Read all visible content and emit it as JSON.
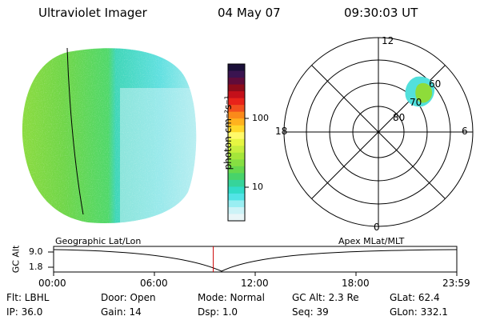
{
  "header": {
    "instrument": "Ultraviolet Imager",
    "date": "04 May 07",
    "time": "09:30:03 UT"
  },
  "colorbar": {
    "unit_label": "photon cm⁻²s⁻¹",
    "tick_labels": [
      "100",
      "10"
    ],
    "colors": [
      "#1a0f38",
      "#3a1450",
      "#600c3a",
      "#8e0c1a",
      "#c4101a",
      "#e8231a",
      "#f2501e",
      "#fa8a1a",
      "#ffb21e",
      "#ffd82a",
      "#fffa6a",
      "#e6f542",
      "#c7ee3e",
      "#a5e63a",
      "#86df42",
      "#66d84e",
      "#48d36a",
      "#36d49a",
      "#32dcc8",
      "#52e4e6",
      "#9aeef2",
      "#cdf3f7",
      "#e9f6f8"
    ]
  },
  "polar": {
    "mlt_labels": {
      "top": "12",
      "left": "18",
      "right": "6",
      "bottom": "0"
    },
    "lat_labels": [
      "60",
      "70",
      "80"
    ]
  },
  "timeline": {
    "ylabel": "GC Alt",
    "y_ticks": [
      "9.0",
      "1.8"
    ],
    "left_label": "Geographic Lat/Lon",
    "right_label": "Apex  MLat/MLT",
    "x_ticks": [
      "00:00",
      "06:00",
      "12:00",
      "18:00",
      "23:59"
    ],
    "marker_time_frac": 0.396
  },
  "info": {
    "row1": [
      "Flt: LBHL",
      "Door: Open",
      "Mode: Normal",
      "GC Alt: 2.3 Re",
      "GLat:  62.4"
    ],
    "row2": [
      "IP: 36.0",
      "Gain: 14",
      "Dsp:    1.0",
      "Seq: 39",
      "GLon: 332.1"
    ]
  },
  "colors": {
    "marker": "#cc0000",
    "foreground": "#000000",
    "background": "#ffffff"
  }
}
